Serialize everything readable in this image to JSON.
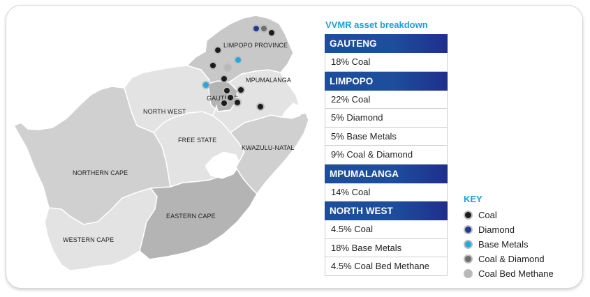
{
  "title": "VVMR asset breakdown",
  "provinces": [
    {
      "name": "GAUTENG",
      "rows": [
        "18% Coal"
      ]
    },
    {
      "name": "LIMPOPO",
      "rows": [
        "22% Coal",
        "5% Diamond",
        "5% Base Metals",
        "9% Coal & Diamond"
      ]
    },
    {
      "name": "MPUMALANGA",
      "rows": [
        "14% Coal"
      ]
    },
    {
      "name": "NORTH WEST",
      "rows": [
        "4.5% Coal",
        "18% Base Metals",
        "4.5% Coal Bed Methane"
      ]
    }
  ],
  "key": {
    "title": "KEY",
    "items": [
      {
        "label": "Coal",
        "color": "#1c1c1c"
      },
      {
        "label": "Diamond",
        "color": "#1f3c8f"
      },
      {
        "label": "Base Metals",
        "color": "#23a9e1"
      },
      {
        "label": "Coal & Diamond",
        "color": "#6e6e6e"
      },
      {
        "label": "Coal Bed Methane",
        "color": "#b8b8b8"
      }
    ]
  },
  "map_labels": {
    "limpopo": "LIMPOPO PROVINCE",
    "mpumalanga": "MPUMALANGA",
    "gauteng": "GAUTENG",
    "north_west": "NORTH WEST",
    "free_state": "FREE STATE",
    "kwazulu_natal": "KWAZULU-NATAL",
    "northern_cape": "NORTHERN CAPE",
    "eastern_cape": "EASTERN CAPE",
    "western_cape": "WESTERN CAPE"
  },
  "colors": {
    "accent": "#1aa0dc",
    "header": "#1d4e9c",
    "map_light": "#e3e3e3",
    "map_mid": "#d0d0d0",
    "map_dark": "#b4b4b4"
  }
}
